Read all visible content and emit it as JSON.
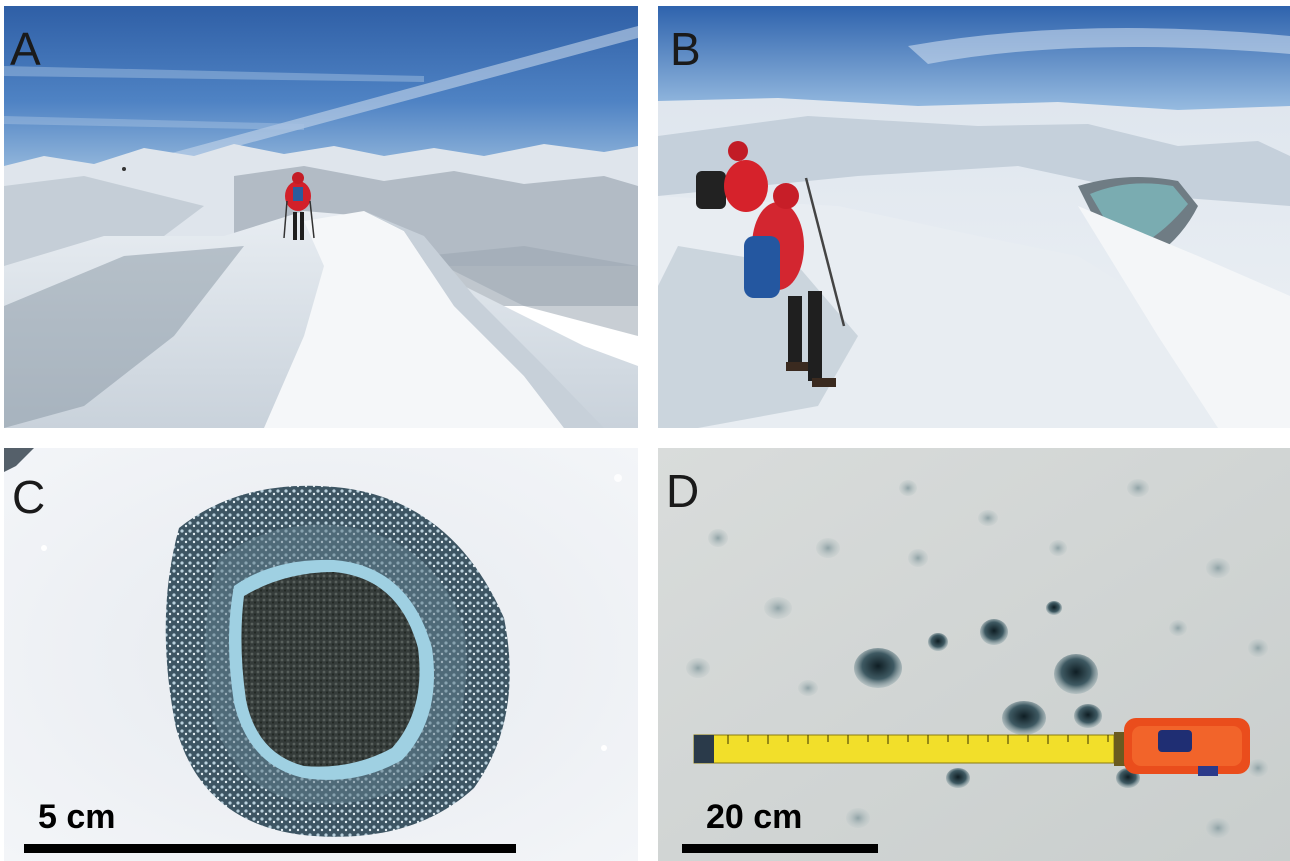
{
  "panels": {
    "a": {
      "letter": "A"
    },
    "b": {
      "letter": "B"
    },
    "c": {
      "letter": "C",
      "scale_label": "5 cm"
    },
    "d": {
      "letter": "D",
      "scale_label": "20 cm"
    }
  }
}
